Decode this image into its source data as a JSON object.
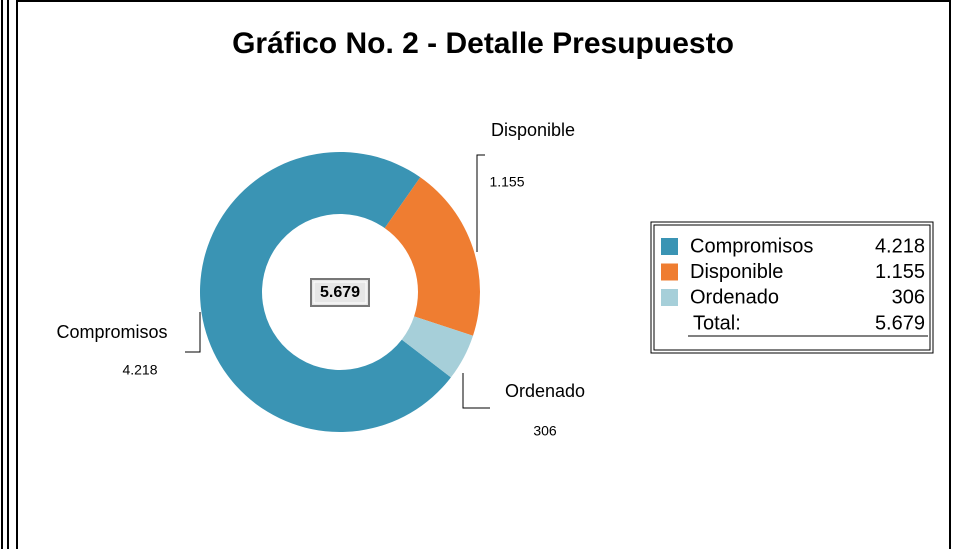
{
  "chart_data": {
    "type": "donut",
    "title": "Gráfico No. 2 - Detalle Presupuesto",
    "categories": [
      "Compromisos",
      "Disponible",
      "Ordenado"
    ],
    "values": [
      4218,
      1155,
      306
    ],
    "value_labels": [
      "4.218",
      "1.155",
      "306"
    ],
    "colors": [
      "#3a94b4",
      "#ef7d31",
      "#a6cfd9"
    ],
    "total": 5679,
    "total_label": "5.679",
    "total_title": "Total:",
    "legend": "right"
  }
}
